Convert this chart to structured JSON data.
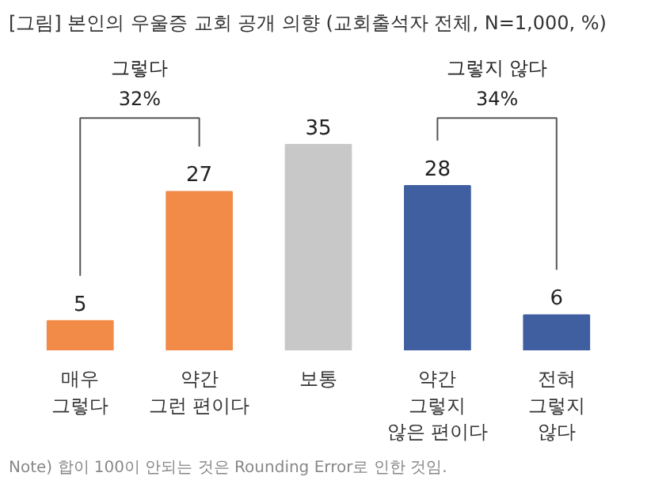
{
  "chart_data": {
    "type": "bar",
    "title": "[그림] 본인의 우울증 교회 공개 의향 (교회출석자 전체, N=1,000, %)",
    "categories": [
      "매우\n그렇다",
      "약간\n그런 편이다",
      "보통",
      "약간\n그렇지\n않은 편이다",
      "전혀\n그렇지\n않다"
    ],
    "values": [
      5,
      27,
      35,
      28,
      6
    ],
    "colors": [
      "#f28a48",
      "#f28a48",
      "#c8c8c8",
      "#3f5fa0",
      "#3f5fa0"
    ],
    "data_labels": true,
    "grid": false,
    "annotations": [
      "그렇다\n32%",
      "그렇지 않다\n34%",
      "Note) 합이 100이 안되는 것은 Rounding Error로 인한 것임."
    ]
  }
}
